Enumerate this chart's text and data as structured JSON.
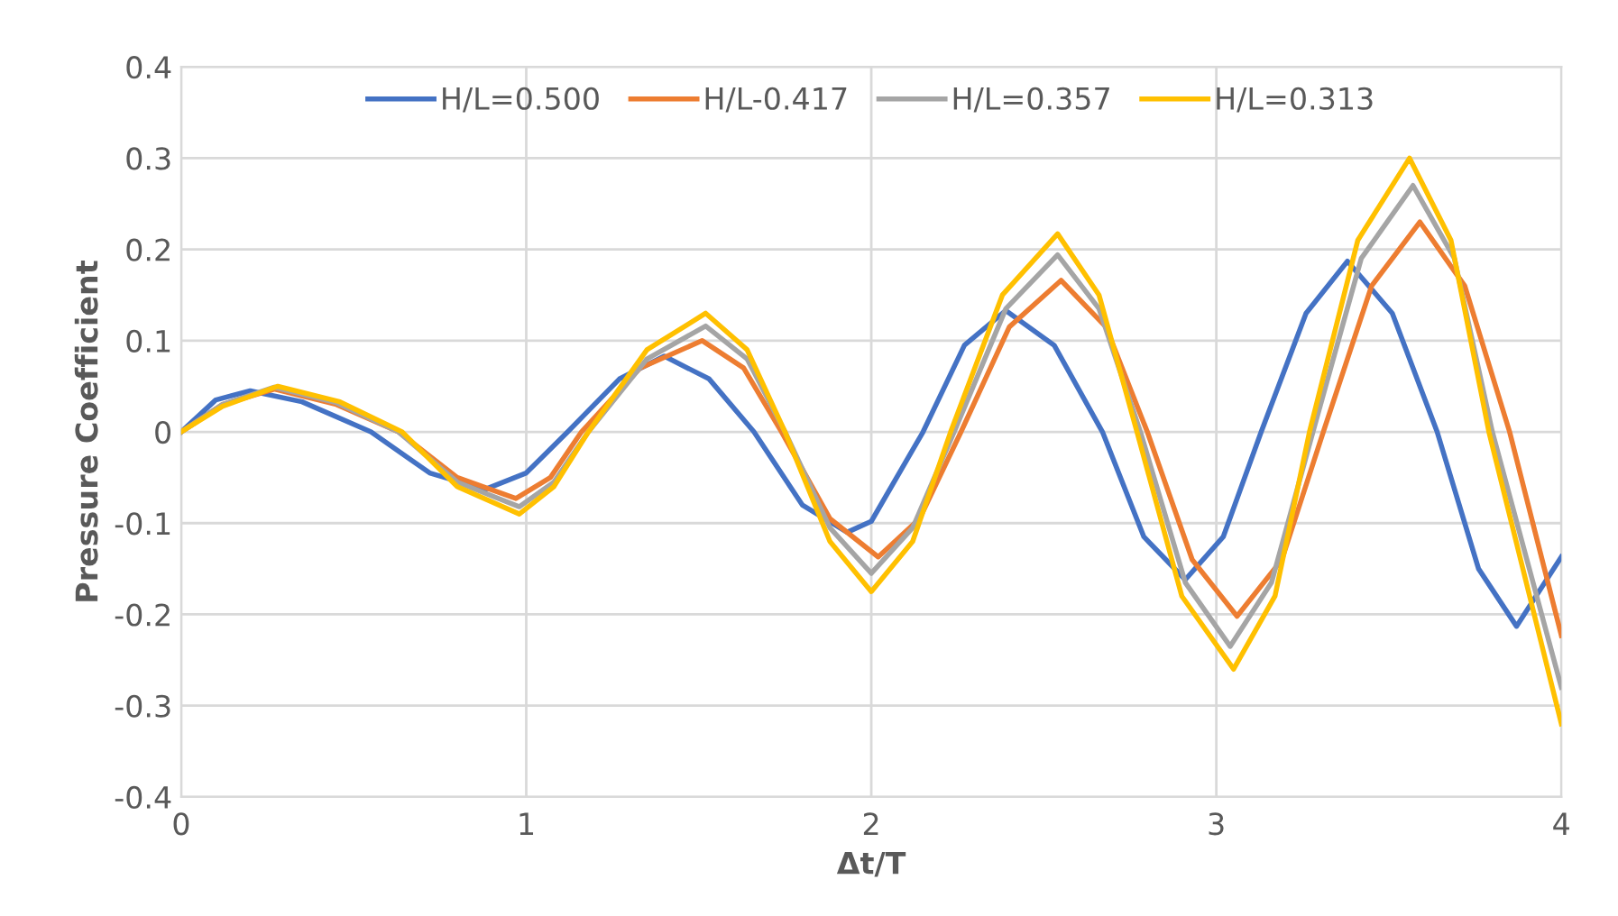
{
  "chart_data": {
    "type": "line",
    "xlabel": "Δt/T",
    "ylabel": "Pressure Coefficient",
    "xlim": [
      0,
      4
    ],
    "xticks": [
      0,
      1,
      2,
      3,
      4
    ],
    "ylim": [
      -0.4,
      0.4
    ],
    "yticks": [
      -0.4,
      -0.3,
      -0.2,
      -0.1,
      0,
      0.1,
      0.2,
      0.3,
      0.4
    ],
    "grid": true,
    "legend": "top",
    "marker": "none",
    "line_style": "solid",
    "series": [
      {
        "name": "H/L=0.500",
        "color": "#4472c4",
        "x": [
          0,
          0.1,
          0.2,
          0.35,
          0.55,
          0.72,
          0.88,
          1.0,
          1.12,
          1.27,
          1.4,
          1.53,
          1.66,
          1.8,
          1.93,
          2.0,
          2.15,
          2.27,
          2.39,
          2.53,
          2.67,
          2.79,
          2.91,
          3.02,
          3.13,
          3.26,
          3.38,
          3.51,
          3.64,
          3.76,
          3.87,
          4.0
        ],
        "values": [
          0,
          0.035,
          0.045,
          0.033,
          0,
          -0.045,
          -0.063,
          -0.045,
          0,
          0.058,
          0.083,
          0.058,
          0,
          -0.08,
          -0.11,
          -0.098,
          0,
          0.095,
          0.133,
          0.095,
          0,
          -0.115,
          -0.162,
          -0.115,
          0,
          0.13,
          0.187,
          0.13,
          0,
          -0.15,
          -0.213,
          -0.137
        ]
      },
      {
        "name": "H/L-0.417",
        "color": "#ed7d31",
        "x": [
          0,
          0.12,
          0.27,
          0.45,
          0.63,
          0.8,
          0.97,
          1.07,
          1.16,
          1.33,
          1.51,
          1.63,
          1.74,
          1.88,
          2.02,
          2.14,
          2.26,
          2.4,
          2.55,
          2.68,
          2.8,
          2.93,
          3.06,
          3.19,
          3.31,
          3.45,
          3.59,
          3.72,
          3.85,
          4.0
        ],
        "values": [
          0,
          0.03,
          0.047,
          0.03,
          0,
          -0.05,
          -0.073,
          -0.05,
          0,
          0.07,
          0.1,
          0.07,
          0,
          -0.095,
          -0.137,
          -0.095,
          0,
          0.115,
          0.166,
          0.115,
          0,
          -0.14,
          -0.202,
          -0.14,
          0,
          0.16,
          0.23,
          0.16,
          0,
          -0.223
        ]
      },
      {
        "name": "H/L=0.357",
        "color": "#a5a5a5",
        "x": [
          0,
          0.12,
          0.27,
          0.45,
          0.63,
          0.8,
          0.98,
          1.08,
          1.18,
          1.35,
          1.52,
          1.64,
          1.75,
          1.88,
          2.0,
          2.12,
          2.24,
          2.39,
          2.54,
          2.66,
          2.78,
          2.91,
          3.04,
          3.16,
          3.28,
          3.42,
          3.57,
          3.69,
          3.8,
          4.0
        ],
        "values": [
          0,
          0.03,
          0.049,
          0.032,
          0,
          -0.055,
          -0.082,
          -0.055,
          0,
          0.08,
          0.116,
          0.08,
          0,
          -0.105,
          -0.155,
          -0.105,
          0,
          0.135,
          0.194,
          0.135,
          0,
          -0.165,
          -0.235,
          -0.165,
          0,
          0.19,
          0.27,
          0.19,
          0,
          -0.28
        ]
      },
      {
        "name": "H/L=0.313",
        "color": "#ffc000",
        "x": [
          0,
          0.12,
          0.28,
          0.46,
          0.64,
          0.8,
          0.98,
          1.08,
          1.18,
          1.35,
          1.52,
          1.64,
          1.75,
          1.88,
          2.0,
          2.12,
          2.23,
          2.38,
          2.54,
          2.66,
          2.77,
          2.9,
          3.05,
          3.17,
          3.27,
          3.41,
          3.56,
          3.68,
          3.79,
          4.0
        ],
        "values": [
          0,
          0.028,
          0.05,
          0.033,
          0,
          -0.06,
          -0.09,
          -0.06,
          0,
          0.09,
          0.13,
          0.09,
          0,
          -0.12,
          -0.175,
          -0.12,
          0,
          0.15,
          0.217,
          0.15,
          0,
          -0.18,
          -0.26,
          -0.18,
          0,
          0.21,
          0.3,
          0.21,
          0,
          -0.32
        ]
      }
    ]
  }
}
